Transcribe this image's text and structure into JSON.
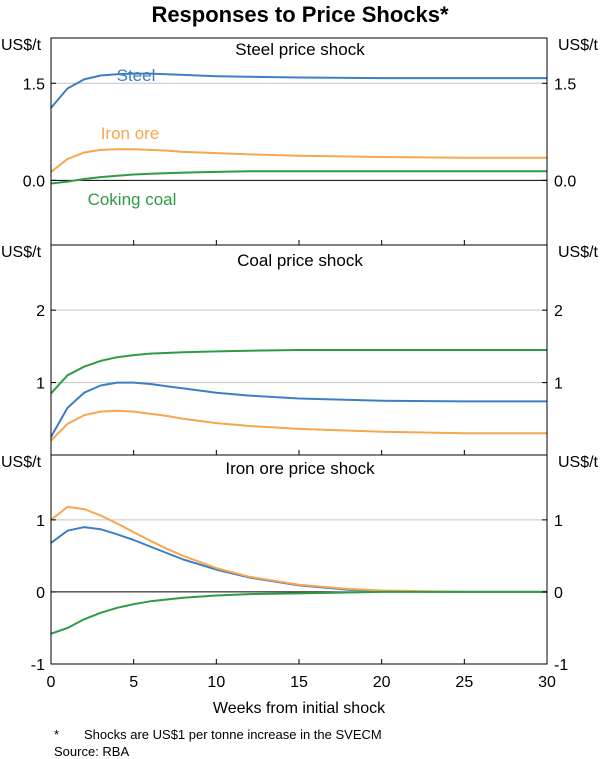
{
  "chart_data": {
    "type": "line",
    "title": "Responses to Price Shocks*",
    "xlabel": "Weeks from initial shock",
    "xlim": [
      0,
      30
    ],
    "xticks": [
      "0",
      "5",
      "10",
      "15",
      "20",
      "25",
      "30"
    ],
    "unit_label": "US$/t",
    "colors": {
      "Steel": "#3d7fc4",
      "Iron ore": "#f7a54f",
      "Coking coal": "#2e9c46"
    },
    "panels": [
      {
        "title": "Steel price shock",
        "ylim": [
          -1.0,
          2.2
        ],
        "yticks": [
          {
            "value": 1.5,
            "label": "1.5"
          },
          {
            "value": 0.0,
            "label": "0.0"
          }
        ],
        "annotations": [
          {
            "series": "Steel",
            "text": "Steel"
          },
          {
            "series": "Iron ore",
            "text": "Iron ore"
          },
          {
            "series": "Coking coal",
            "text": "Coking coal"
          }
        ],
        "series": [
          {
            "name": "Steel",
            "x": [
              0,
              1,
              2,
              3,
              4,
              5,
              6,
              7,
              8,
              10,
              12,
              15,
              20,
              25,
              30
            ],
            "values": [
              1.12,
              1.42,
              1.56,
              1.62,
              1.64,
              1.65,
              1.65,
              1.64,
              1.63,
              1.61,
              1.6,
              1.59,
              1.58,
              1.58,
              1.58
            ]
          },
          {
            "name": "Iron ore",
            "x": [
              0,
              1,
              2,
              3,
              4,
              5,
              6,
              7,
              8,
              10,
              12,
              15,
              20,
              25,
              30
            ],
            "values": [
              0.13,
              0.33,
              0.43,
              0.47,
              0.48,
              0.48,
              0.47,
              0.46,
              0.44,
              0.42,
              0.4,
              0.38,
              0.36,
              0.35,
              0.35
            ]
          },
          {
            "name": "Coking coal",
            "x": [
              0,
              1,
              2,
              3,
              4,
              5,
              6,
              8,
              10,
              12,
              15,
              20,
              25,
              30
            ],
            "values": [
              -0.05,
              -0.02,
              0.02,
              0.05,
              0.07,
              0.09,
              0.1,
              0.12,
              0.13,
              0.14,
              0.14,
              0.14,
              0.14,
              0.14
            ]
          }
        ]
      },
      {
        "title": "Coal price shock",
        "ylim": [
          0,
          2.9
        ],
        "yticks": [
          {
            "value": 2,
            "label": "2"
          },
          {
            "value": 1,
            "label": "1"
          }
        ],
        "annotations": [],
        "series": [
          {
            "name": "Steel",
            "x": [
              0,
              1,
              2,
              3,
              4,
              5,
              6,
              7,
              8,
              10,
              12,
              15,
              20,
              25,
              30
            ],
            "values": [
              0.25,
              0.65,
              0.86,
              0.96,
              1.0,
              1.0,
              0.98,
              0.95,
              0.92,
              0.86,
              0.82,
              0.78,
              0.75,
              0.74,
              0.74
            ]
          },
          {
            "name": "Iron ore",
            "x": [
              0,
              1,
              2,
              3,
              4,
              5,
              6,
              7,
              8,
              10,
              12,
              15,
              20,
              25,
              30
            ],
            "values": [
              0.2,
              0.43,
              0.55,
              0.6,
              0.61,
              0.6,
              0.57,
              0.54,
              0.5,
              0.44,
              0.4,
              0.36,
              0.32,
              0.3,
              0.3
            ]
          },
          {
            "name": "Coking coal",
            "x": [
              0,
              1,
              2,
              3,
              4,
              5,
              6,
              8,
              10,
              12,
              15,
              20,
              25,
              30
            ],
            "values": [
              0.85,
              1.1,
              1.22,
              1.3,
              1.35,
              1.38,
              1.4,
              1.42,
              1.43,
              1.44,
              1.45,
              1.45,
              1.45,
              1.45
            ]
          }
        ]
      },
      {
        "title": "Iron ore price shock",
        "ylim": [
          -1,
          1.9
        ],
        "yticks": [
          {
            "value": 1,
            "label": "1"
          },
          {
            "value": 0,
            "label": "0"
          },
          {
            "value": -1,
            "label": "-1"
          }
        ],
        "annotations": [],
        "series": [
          {
            "name": "Steel",
            "x": [
              0,
              1,
              2,
              3,
              4,
              5,
              6,
              7,
              8,
              10,
              12,
              15,
              18,
              20,
              25,
              30
            ],
            "values": [
              0.68,
              0.85,
              0.9,
              0.87,
              0.8,
              0.72,
              0.63,
              0.54,
              0.45,
              0.31,
              0.2,
              0.09,
              0.03,
              0.01,
              0.0,
              0.0
            ]
          },
          {
            "name": "Iron ore",
            "x": [
              0,
              1,
              2,
              3,
              4,
              5,
              6,
              7,
              8,
              10,
              12,
              15,
              18,
              20,
              25,
              30
            ],
            "values": [
              1.0,
              1.18,
              1.15,
              1.06,
              0.95,
              0.83,
              0.71,
              0.6,
              0.5,
              0.33,
              0.21,
              0.1,
              0.04,
              0.02,
              0.0,
              0.0
            ]
          },
          {
            "name": "Coking coal",
            "x": [
              0,
              1,
              2,
              3,
              4,
              5,
              6,
              8,
              10,
              12,
              15,
              20,
              25,
              30
            ],
            "values": [
              -0.58,
              -0.5,
              -0.38,
              -0.29,
              -0.22,
              -0.17,
              -0.13,
              -0.08,
              -0.05,
              -0.03,
              -0.02,
              0.0,
              0.0,
              0.0
            ]
          }
        ]
      }
    ],
    "footnote_marker": "*",
    "footnote_text": "Shocks are US$1 per tonne increase in the SVECM",
    "source": "Source: RBA"
  }
}
